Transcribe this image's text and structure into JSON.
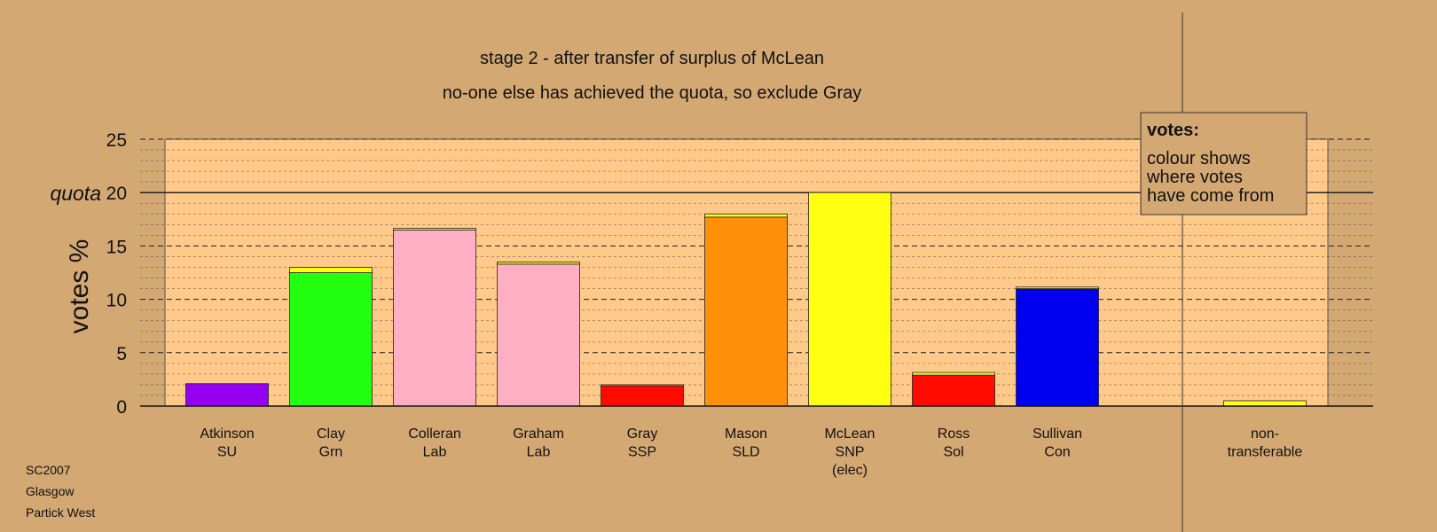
{
  "chart_data": {
    "type": "bar",
    "title": "stage 2 - after transfer of surplus of McLean",
    "subtitle": "no-one else has achieved the quota, so exclude Gray",
    "ylabel": "votes %",
    "ylim": [
      0,
      25
    ],
    "yticks": [
      0,
      5,
      10,
      15,
      20,
      25
    ],
    "quota": {
      "label": "quota",
      "value": 20
    },
    "grid": true,
    "legend": {
      "placement": "top-right",
      "title": "votes:",
      "lines": [
        "colour shows",
        "where votes",
        "have come from"
      ]
    },
    "categories": [
      {
        "name": "Atkinson",
        "party": "SU",
        "note": ""
      },
      {
        "name": "Clay",
        "party": "Grn",
        "note": ""
      },
      {
        "name": "Colleran",
        "party": "Lab",
        "note": ""
      },
      {
        "name": "Graham",
        "party": "Lab",
        "note": ""
      },
      {
        "name": "Gray",
        "party": "SSP",
        "note": ""
      },
      {
        "name": "Mason",
        "party": "SLD",
        "note": ""
      },
      {
        "name": "McLean",
        "party": "SNP",
        "note": "(elec)"
      },
      {
        "name": "Ross",
        "party": "Sol",
        "note": ""
      },
      {
        "name": "Sullivan",
        "party": "Con",
        "note": ""
      },
      {
        "name": "non-",
        "party": "transferable",
        "note": ""
      }
    ],
    "series": [
      {
        "colors": [
          "#9400f0",
          "#22ff11",
          "#ffafc3",
          "#ffafc3",
          "#ff0a00",
          "#ff900a",
          "#ffff11",
          "#ff0a00",
          "#0000f0",
          "#ffff22"
        ],
        "values": [
          2.1,
          12.5,
          16.5,
          13.3,
          1.9,
          17.7,
          20.0,
          2.9,
          11.0,
          0.0
        ]
      },
      {
        "colors": [
          "#ffff11",
          "#ffff11",
          "#ffff11",
          "#ffff11",
          "#ffff11",
          "#ffff11",
          "#ffff11",
          "#ffff11",
          "#ffff11",
          "#ffff22"
        ],
        "values": [
          0.0,
          0.5,
          0.15,
          0.2,
          0.1,
          0.3,
          0.0,
          0.25,
          0.15,
          0.5
        ]
      }
    ]
  },
  "footer": {
    "lines": [
      "SC2007",
      "Glasgow",
      "Partick West"
    ]
  }
}
